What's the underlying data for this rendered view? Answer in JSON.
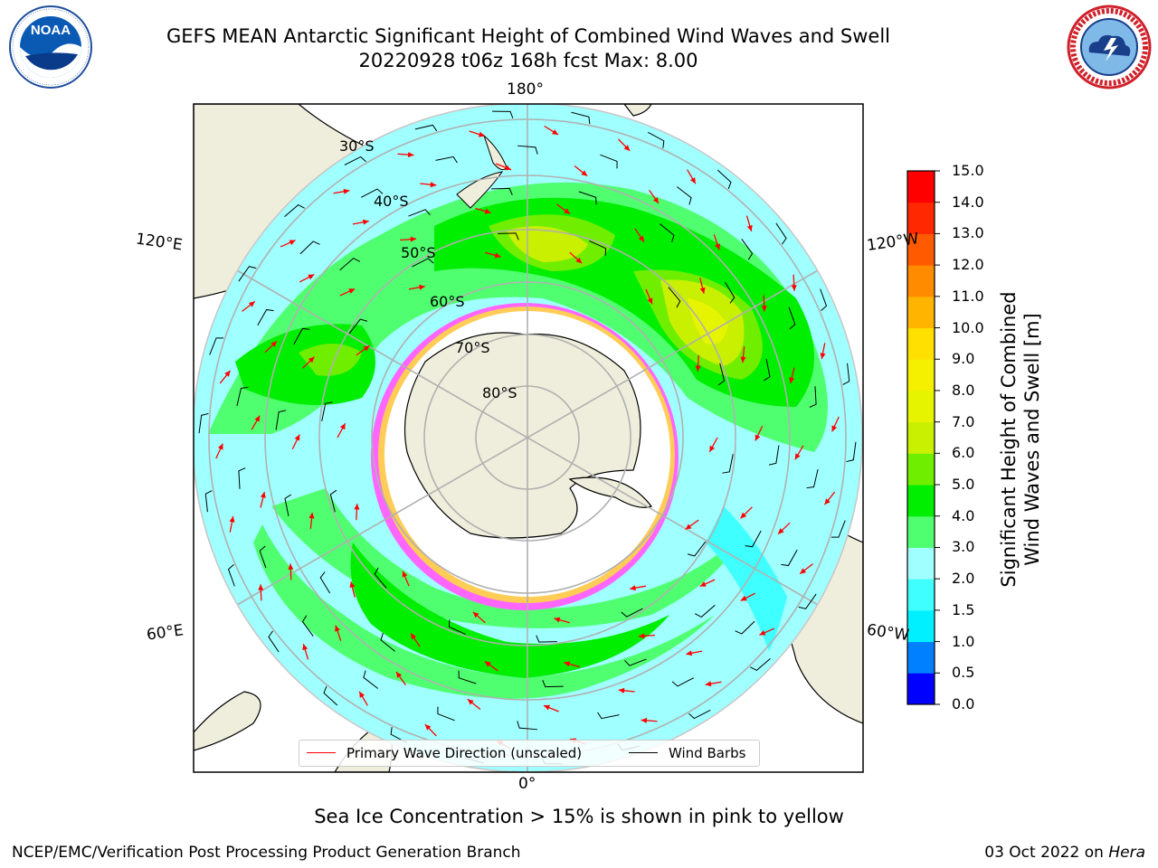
{
  "header": {
    "title_line1": "GEFS MEAN Antarctic Significant Height of Combined Wind Waves and Swell",
    "title_line2": "20220928 t06z 168h fcst   Max: 8.00"
  },
  "logos": {
    "left": "noaa-logo",
    "right": "national-weather-service-logo"
  },
  "map": {
    "projection": "south-polar-stereographic",
    "longitude_labels": {
      "top": "180°",
      "bottom": "0°",
      "left_upper": "120°E",
      "left_lower": "60°E",
      "right_upper": "120°W",
      "right_lower": "60°W"
    },
    "latitude_labels": [
      "30°S",
      "40°S",
      "50°S",
      "60°S",
      "70°S",
      "80°S"
    ],
    "colors": {
      "land": "#efeedc",
      "ice_edge_pink": "#ff33ff",
      "ice_edge_yellow": "#ffcc44",
      "wave_arrow": "#ff0000",
      "wind_barb": "#000000"
    }
  },
  "colorbar": {
    "label_line1": "Significant Height of Combined",
    "label_line2": "Wind Waves and Swell [m]",
    "ticks": [
      "0.0",
      "0.5",
      "1.0",
      "1.5",
      "2.0",
      "3.0",
      "4.0",
      "5.0",
      "6.0",
      "7.0",
      "8.0",
      "9.0",
      "10.0",
      "11.0",
      "12.0",
      "13.0",
      "14.0",
      "15.0"
    ],
    "colors": [
      "#0000ff",
      "#0080ff",
      "#00f0ff",
      "#40ffff",
      "#a0ffff",
      "#50ff70",
      "#00ee00",
      "#70ee00",
      "#c8f000",
      "#e6f400",
      "#f4f000",
      "#ffe000",
      "#ffb400",
      "#ff8c00",
      "#ff5a00",
      "#ff2800",
      "#ff0000"
    ]
  },
  "legend": {
    "wave_direction_label": "Primary Wave Direction (unscaled)",
    "wind_barbs_label": "Wind Barbs"
  },
  "note": "Sea Ice Concentration > 15% is shown in pink to yellow",
  "footer": {
    "left": "NCEP/EMC/Verification Post Processing Product Generation Branch",
    "right_prefix": "03 Oct 2022 on ",
    "right_host": "Hera"
  }
}
